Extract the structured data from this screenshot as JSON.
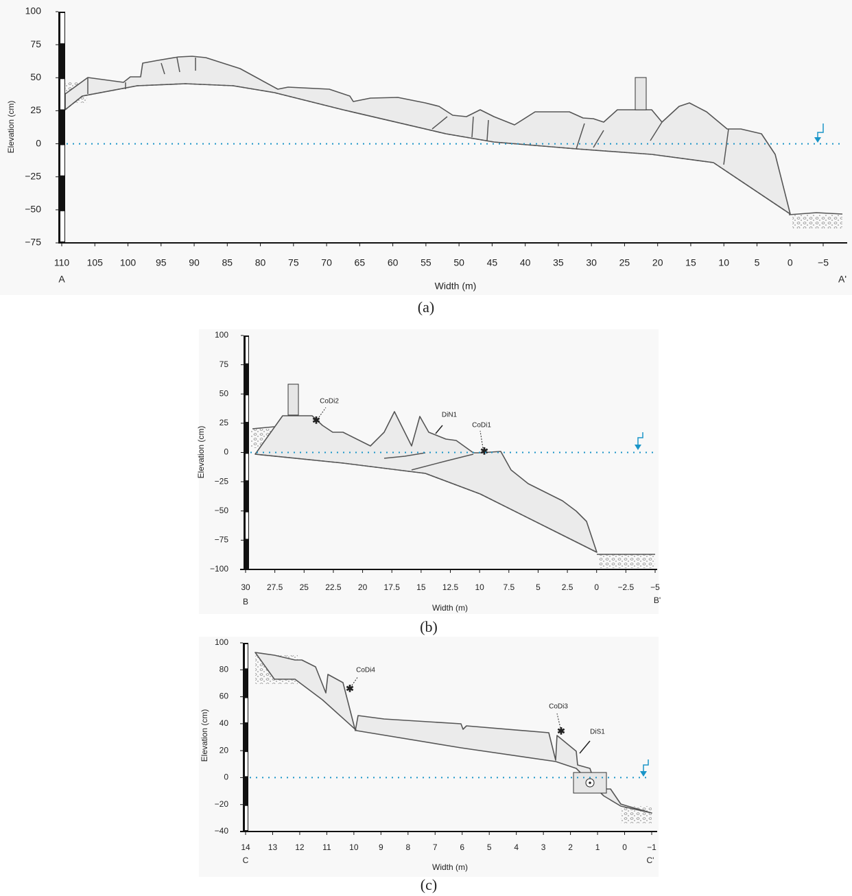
{
  "panels": [
    {
      "label": "(a)",
      "x_axis": {
        "title": "Width (m)",
        "range": [
          110,
          -5
        ],
        "ticks": [
          110,
          105,
          100,
          95,
          90,
          85,
          80,
          75,
          70,
          65,
          60,
          55,
          50,
          45,
          40,
          35,
          30,
          25,
          20,
          15,
          10,
          5,
          0,
          {
            "value": -5,
            "label": "−5"
          }
        ]
      },
      "y_axis": {
        "title": "Elevation (cm)",
        "range": [
          -75,
          100
        ],
        "ticks": [
          100,
          75,
          50,
          25,
          0,
          {
            "value": -25,
            "label": "−25"
          },
          {
            "value": -50,
            "label": "−50"
          },
          {
            "value": -75,
            "label": "−75"
          }
        ]
      },
      "endpoints": [
        "A",
        "A'"
      ]
    },
    {
      "label": "(b)",
      "x_axis": {
        "title": "Width (m)",
        "range": [
          30,
          -5
        ],
        "ticks": [
          30,
          27.5,
          25,
          22.5,
          20,
          17.5,
          15,
          12.5,
          10,
          7.5,
          5,
          2.5,
          0,
          {
            "value": -2.5,
            "label": "−2.5"
          },
          {
            "value": -5,
            "label": "−5"
          }
        ]
      },
      "y_axis": {
        "title": "Elevation (cm)",
        "range": [
          -100,
          100
        ],
        "ticks": [
          100,
          75,
          50,
          25,
          0,
          {
            "value": -25,
            "label": "−25"
          },
          {
            "value": -50,
            "label": "−50"
          },
          {
            "value": -75,
            "label": "−75"
          },
          {
            "value": -100,
            "label": "−100"
          }
        ]
      },
      "endpoints": [
        "B",
        "B'"
      ],
      "annotations": [
        "CoDi2",
        "DiN1",
        "CoDi1"
      ]
    },
    {
      "label": "(c)",
      "x_axis": {
        "title": "Width (m)",
        "range": [
          14,
          -1
        ],
        "ticks": [
          14,
          13,
          12,
          11,
          10,
          9,
          8,
          7,
          6,
          5,
          4,
          3,
          2,
          1,
          0,
          {
            "value": -1,
            "label": "−1"
          }
        ]
      },
      "y_axis": {
        "title": "Elevation (cm)",
        "range": [
          -40,
          100
        ],
        "ticks": [
          100,
          80,
          60,
          40,
          20,
          0,
          {
            "value": -20,
            "label": "−20"
          },
          {
            "value": -40,
            "label": "−40"
          }
        ]
      },
      "endpoints": [
        "C",
        "C'"
      ],
      "annotations": [
        "CoDi4",
        "CoDi3",
        "DiS1"
      ]
    }
  ]
}
